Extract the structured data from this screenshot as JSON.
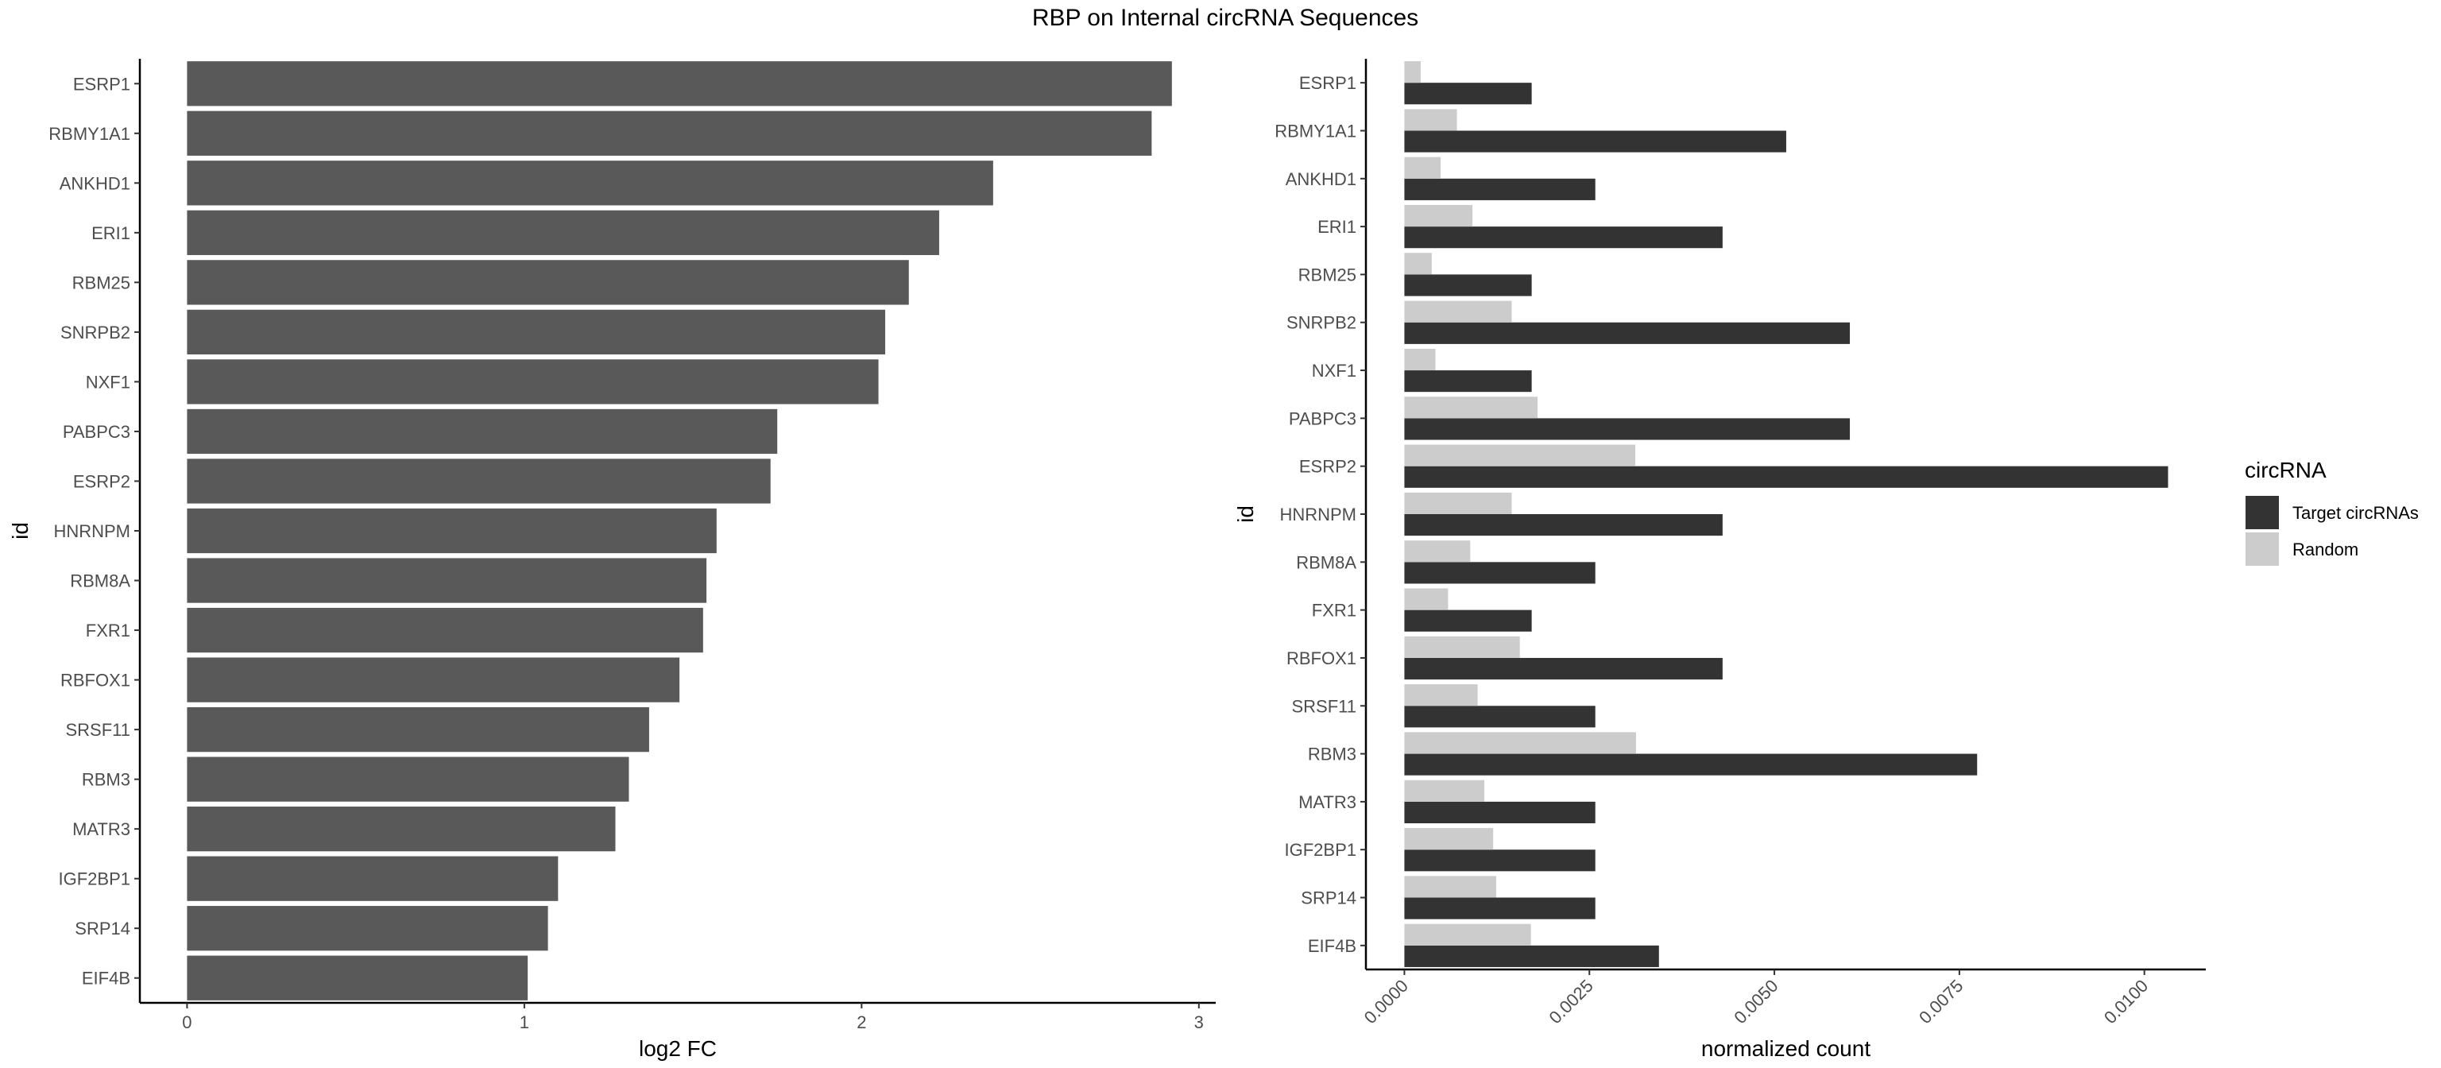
{
  "figure_title": "RBP on Internal circRNA Sequences",
  "chart_data": [
    {
      "type": "bar",
      "orientation": "horizontal",
      "categories": [
        "ESRP1",
        "RBMY1A1",
        "ANKHD1",
        "ERI1",
        "RBM25",
        "SNRPB2",
        "NXF1",
        "PABPC3",
        "ESRP2",
        "HNRNPM",
        "RBM8A",
        "FXR1",
        "RBFOX1",
        "SRSF11",
        "RBM3",
        "MATR3",
        "IGF2BP1",
        "SRP14",
        "EIF4B"
      ],
      "values": [
        2.92,
        2.86,
        2.39,
        2.23,
        2.14,
        2.07,
        2.05,
        1.75,
        1.73,
        1.57,
        1.54,
        1.53,
        1.46,
        1.37,
        1.31,
        1.27,
        1.1,
        1.07,
        1.01
      ],
      "xlabel": "log2 FC",
      "ylabel": "id",
      "xlim": [
        -0.14,
        3.05
      ],
      "xticks": [
        0,
        1,
        2,
        3
      ],
      "xtick_labels": [
        "0",
        "1",
        "2",
        "3"
      ],
      "bar_color": "#595959",
      "grid": false
    },
    {
      "type": "bar",
      "orientation": "horizontal",
      "grouped": true,
      "categories": [
        "ESRP1",
        "RBMY1A1",
        "ANKHD1",
        "ERI1",
        "RBM25",
        "SNRPB2",
        "NXF1",
        "PABPC3",
        "ESRP2",
        "HNRNPM",
        "RBM8A",
        "FXR1",
        "RBFOX1",
        "SRSF11",
        "RBM3",
        "MATR3",
        "IGF2BP1",
        "SRP14",
        "EIF4B"
      ],
      "series": [
        {
          "name": "Target circRNAs",
          "color": "#333333",
          "values": [
            0.00172,
            0.00516,
            0.00258,
            0.0043,
            0.00172,
            0.00602,
            0.00172,
            0.00602,
            0.01032,
            0.0043,
            0.00258,
            0.00172,
            0.0043,
            0.00258,
            0.00774,
            0.00258,
            0.00258,
            0.00258,
            0.00344
          ]
        },
        {
          "name": "Random",
          "color": "#cccccc",
          "values": [
            0.00022,
            0.00071,
            0.00049,
            0.00092,
            0.00037,
            0.00145,
            0.00042,
            0.0018,
            0.00312,
            0.00145,
            0.00089,
            0.00059,
            0.00156,
            0.00099,
            0.00313,
            0.00108,
            0.0012,
            0.00124,
            0.00171
          ]
        }
      ],
      "xlabel": "normalized count",
      "ylabel": "id",
      "xlim": [
        -0.00052,
        0.01083
      ],
      "xticks": [
        0,
        0.0025,
        0.005,
        0.0075,
        0.01
      ],
      "xtick_labels": [
        "0.0000",
        "0.0025",
        "0.0050",
        "0.0075",
        "0.0100"
      ],
      "legend": {
        "title": "circRNA",
        "position": "right"
      },
      "grid": false
    }
  ]
}
